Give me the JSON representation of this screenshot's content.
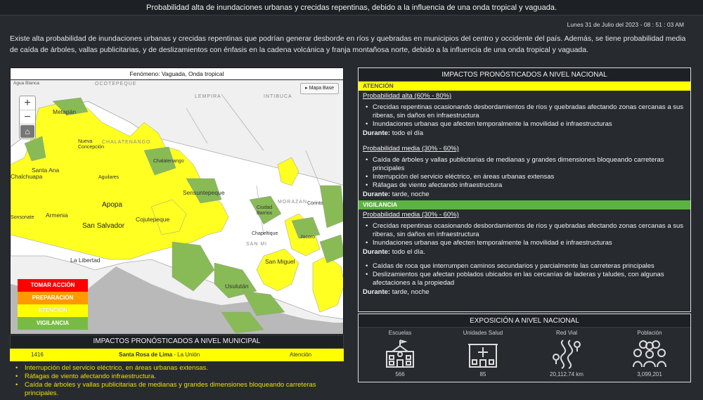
{
  "title": "Probabilidad alta de inundaciones urbanas y crecidas repentinas, debido a la influencia de una onda tropical y vaguada.",
  "timestamp": "Lunes 31 de Julio del 2023 - 08 : 51 : 03 AM",
  "description": "Existe alta probabilidad de inundaciones urbanas y crecidas repentinas que podrían generar desborde en ríos y quebradas en municipios del centro y occidente del país. Además, se tiene probabilidad media de caída de árboles, vallas publicitarias, y de deslizamientos con énfasis en la cadena volcánica y franja montañosa norte, debido a la influencia de una onda tropical y vaguada.",
  "map": {
    "header": "Fenómeno: Vaguada, Onda tropical",
    "zoom_in": "+",
    "zoom_out": "−",
    "home": "⌂",
    "basemap_button": "Mapa Base",
    "attribution": "Agua Blanca",
    "labels": {
      "metapan": "Metapán",
      "nueva_concepcion": "Nueva Concepción",
      "chalatenango": "Chalatenango",
      "santa_ana": "Santa Ana",
      "chalchuapa": "Chalchuapa",
      "aguilares": "Aguilares",
      "sensuntepeque": "Sensuntepeque",
      "apopa": "Apopa",
      "armenia": "Armenia",
      "san_salvador": "San Salvador",
      "cojutepeque": "Cojutepeque",
      "la_libertad": "La Libertad",
      "ciudad_barrios": "Ciudad Barrios",
      "corinto": "Corinto",
      "jocoro": "Jocoro",
      "chapeltique": "Chapeltique",
      "san_miguel": "San Miguel",
      "usulutan": "Usulután",
      "sonsonate": "Sonsonate",
      "ocotepeque": "OCOTEPEQUE",
      "lempira": "LEMPIRA",
      "intibuca": "INTIBUCA",
      "morazan": "MORAZAN",
      "san_miguel_dept": "SAN MI",
      "chalatenango_dept": "CHALATENANGO"
    },
    "legend": [
      "TOMAR ACCIÓN",
      "PREPARACIÓN",
      "ATENCIÓN",
      "VIGILANCIA"
    ]
  },
  "municipal": {
    "header": "IMPACTOS PRONÓSTICADOS A NIVEL MUNICIPAL",
    "row": {
      "code": "1416",
      "name": "Santa Rosa de Lima",
      "dept": " - La Unión",
      "level": "Atención"
    },
    "impacts": [
      "Interrupción del servicio eléctrico, en áreas urbanas extensas.",
      "Ráfagas de viento afectando infraestructura.",
      "Caída de árboles y vallas publicitarias de medianas y grandes dimensiones bloqueando carreteras principales."
    ]
  },
  "national": {
    "header": "IMPACTOS PRONÓSTICADOS A NIVEL NACIONAL",
    "attention_label": "ATENCIÓN",
    "vigilance_label": "VIGILANCIA",
    "during_label": "Durante:",
    "attention": {
      "high": {
        "title": "Probabilidad alta (60% - 80%)",
        "items": [
          "Crecidas repentinas ocasionando desbordamientos de ríos y quebradas afectando zonas cercanas a sus riberas, sin daños en infraestructura",
          "Inundaciones urbanas que afecten temporalmente la movilidad e infraestructuras"
        ],
        "during": "todo el día"
      },
      "medium": {
        "title": "Probabilidad media (30% - 60%)",
        "items": [
          "Caída de árboles y vallas publicitarias de medianas y grandes dimensiones bloqueando carreteras principales",
          "Interrupción del servicio eléctrico, en áreas urbanas extensas",
          "Ráfagas de viento afectando infraestructura"
        ],
        "during": "tarde, noche"
      }
    },
    "vigilance": {
      "medium": {
        "title": "Probabilidad media (30% - 60%)",
        "items": [
          "Crecidas repentinas ocasionando desbordamientos de ríos y quebradas afectando zonas cercanas a sus riberas, sin daños en infraestructura",
          "Inundaciones urbanas que afecten temporalmente la movilidad e infraestructuras"
        ],
        "during": "todo el día.",
        "items2": [
          "Caídas de roca que interrumpen caminos secundarios y parcialmente las carreteras principales",
          "Deslizamientos que afectan poblados ubicados en las cercanías de laderas y taludes, con algunas afectaciones a la propiedad"
        ],
        "during2": "tarde, noche"
      }
    }
  },
  "exposure": {
    "header": "EXPOSICIÓN A NIVEL NACIONAL",
    "items": [
      {
        "label": "Escuelas",
        "value": "566",
        "icon": "school-icon"
      },
      {
        "label": "Unidades Salud",
        "value": "85",
        "icon": "hospital-icon"
      },
      {
        "label": "Red Vial",
        "value": "20,112.74 km",
        "icon": "road-icon"
      },
      {
        "label": "Población",
        "value": "3,099,201",
        "icon": "population-icon"
      }
    ]
  },
  "colors": {
    "red": "#ff0000",
    "orange": "#ff9900",
    "yellow": "#ffff00",
    "green": "#77bb44",
    "background": "#272b30"
  }
}
